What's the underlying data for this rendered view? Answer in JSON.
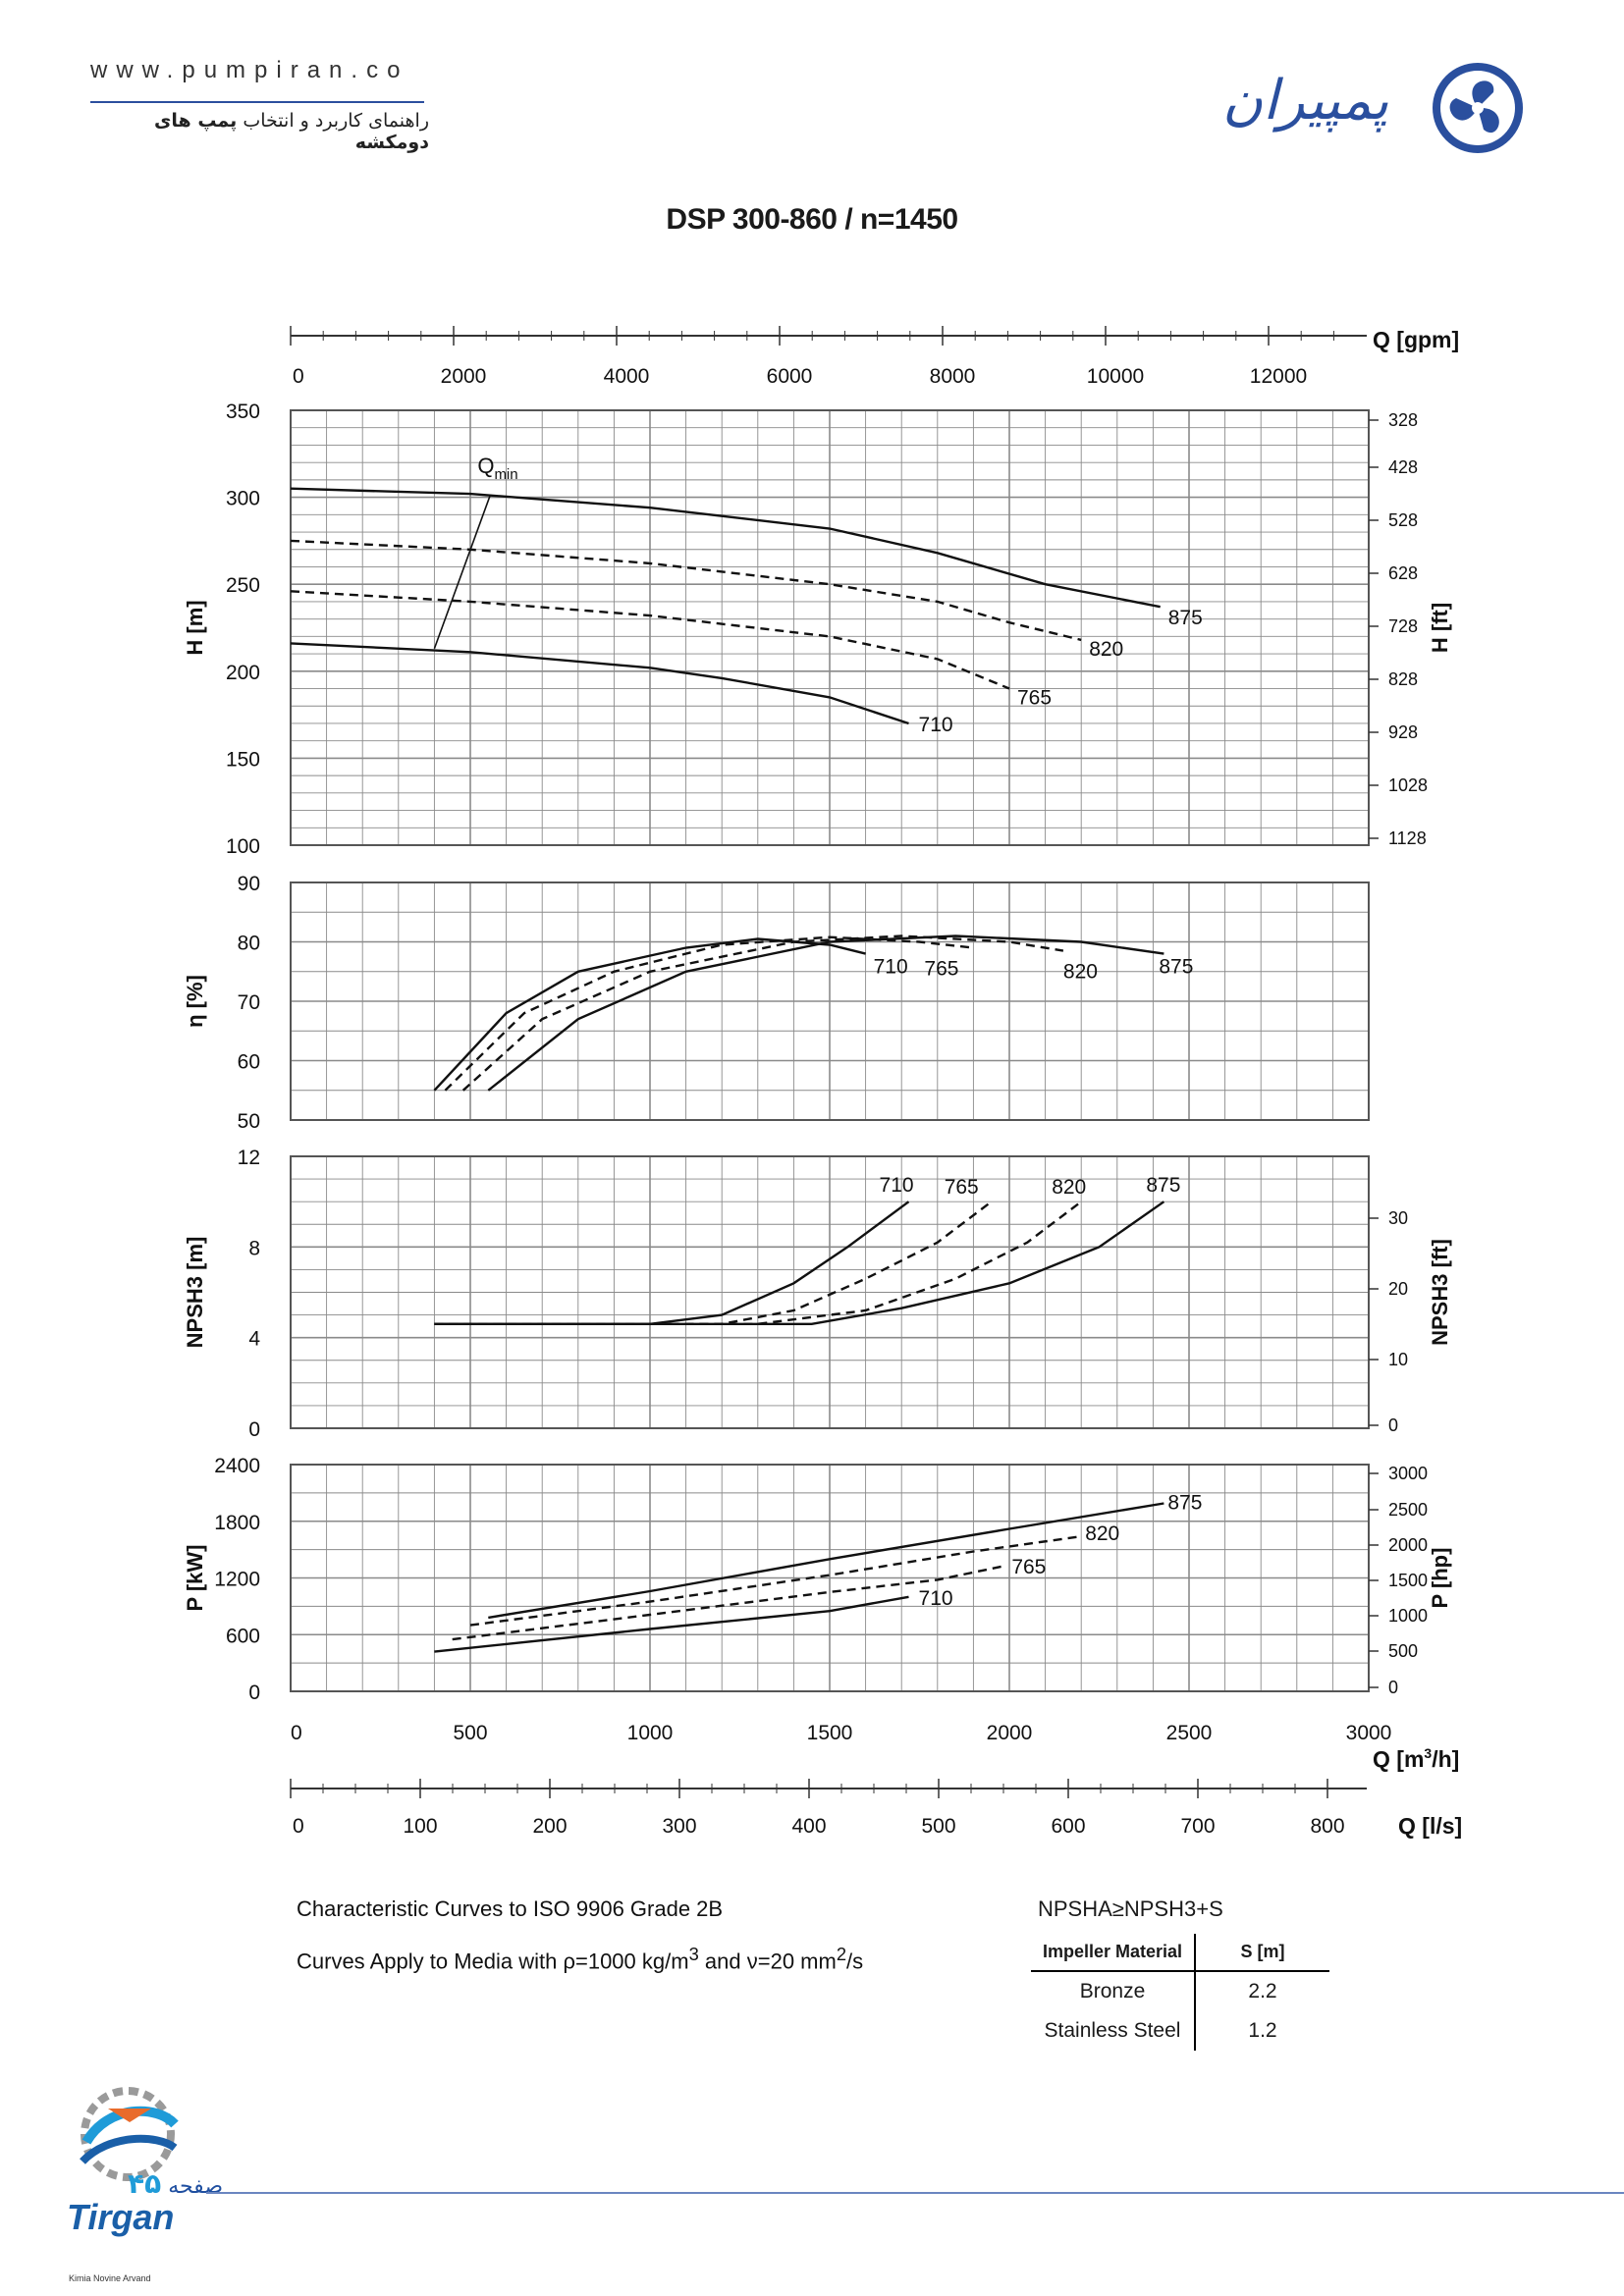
{
  "header": {
    "website": "www.pumpiran.co",
    "subtitle_plain": "راهنمای کاربرد و انتخاب",
    "subtitle_bold": "پمپ های دومکشه",
    "brand_text": "پمپیران",
    "brand_logo_icon": "pumpiran-logo-icon"
  },
  "title": "DSP 300-860 / n=1450",
  "colors": {
    "curve": "#111111",
    "grid": "#8a8a8a",
    "brand": "#2a4f9e"
  },
  "chart_data": [
    {
      "type": "line",
      "panel": "head",
      "ylabel": "H [m]",
      "ylabel_right": "H [ft]",
      "ylim": [
        100,
        350
      ],
      "yticks": [
        "100",
        "150",
        "200",
        "250",
        "300",
        "350"
      ],
      "yticks_right": [
        "328",
        "428",
        "528",
        "628",
        "728",
        "828",
        "928",
        "1028",
        "1128"
      ],
      "grid": true,
      "annotation": {
        "label": "Q",
        "subscript": "min"
      },
      "series": [
        {
          "name": "875",
          "style": "solid",
          "points": [
            [
              0,
              305
            ],
            [
              500,
              302
            ],
            [
              1000,
              294
            ],
            [
              1500,
              282
            ],
            [
              1800,
              268
            ],
            [
              2100,
              250
            ],
            [
              2420,
              237
            ]
          ]
        },
        {
          "name": "820",
          "style": "dashed",
          "points": [
            [
              0,
              275
            ],
            [
              500,
              270
            ],
            [
              1000,
              262
            ],
            [
              1500,
              250
            ],
            [
              1800,
              240
            ],
            [
              2000,
              228
            ],
            [
              2200,
              218
            ]
          ]
        },
        {
          "name": "765",
          "style": "dashed",
          "points": [
            [
              0,
              246
            ],
            [
              500,
              240
            ],
            [
              1000,
              232
            ],
            [
              1500,
              220
            ],
            [
              1800,
              207
            ],
            [
              2000,
              190
            ]
          ]
        },
        {
          "name": "710",
          "style": "solid",
          "points": [
            [
              0,
              216
            ],
            [
              500,
              211
            ],
            [
              1000,
              202
            ],
            [
              1200,
              196
            ],
            [
              1500,
              185
            ],
            [
              1720,
              170
            ]
          ]
        }
      ]
    },
    {
      "type": "line",
      "panel": "efficiency",
      "ylabel": "η [%]",
      "ylim": [
        50,
        90
      ],
      "yticks": [
        "50",
        "60",
        "70",
        "80",
        "90"
      ],
      "grid": true,
      "series": [
        {
          "name": "710",
          "style": "solid",
          "points": [
            [
              400,
              55
            ],
            [
              600,
              68
            ],
            [
              800,
              75
            ],
            [
              1100,
              79
            ],
            [
              1300,
              80.5
            ],
            [
              1500,
              79.5
            ],
            [
              1600,
              78
            ]
          ]
        },
        {
          "name": "765",
          "style": "dashed",
          "points": [
            [
              430,
              55
            ],
            [
              650,
              68
            ],
            [
              900,
              75
            ],
            [
              1200,
              79.5
            ],
            [
              1500,
              80.8
            ],
            [
              1750,
              80
            ],
            [
              1900,
              79
            ]
          ]
        },
        {
          "name": "820",
          "style": "dashed",
          "points": [
            [
              480,
              55
            ],
            [
              700,
              67
            ],
            [
              1000,
              75
            ],
            [
              1400,
              80
            ],
            [
              1700,
              81
            ],
            [
              2000,
              80
            ],
            [
              2150,
              78.5
            ]
          ]
        },
        {
          "name": "875",
          "style": "solid",
          "points": [
            [
              550,
              55
            ],
            [
              800,
              67
            ],
            [
              1100,
              75
            ],
            [
              1500,
              80
            ],
            [
              1850,
              81
            ],
            [
              2200,
              80
            ],
            [
              2430,
              78
            ]
          ]
        }
      ]
    },
    {
      "type": "line",
      "panel": "npsh",
      "ylabel": "NPSH3 [m]",
      "ylabel_right": "NPSH3 [ft]",
      "ylim": [
        0,
        12
      ],
      "yticks": [
        "0",
        "4",
        "8",
        "12"
      ],
      "yticks_right": [
        "0",
        "10",
        "20",
        "30"
      ],
      "grid": true,
      "series": [
        {
          "name": "710",
          "style": "solid",
          "points": [
            [
              400,
              4.6
            ],
            [
              1000,
              4.6
            ],
            [
              1200,
              5.0
            ],
            [
              1400,
              6.4
            ],
            [
              1550,
              8.0
            ],
            [
              1720,
              10
            ]
          ]
        },
        {
          "name": "765",
          "style": "dashed",
          "points": [
            [
              400,
              4.6
            ],
            [
              1200,
              4.6
            ],
            [
              1400,
              5.2
            ],
            [
              1600,
              6.6
            ],
            [
              1800,
              8.2
            ],
            [
              1950,
              10
            ]
          ]
        },
        {
          "name": "820",
          "style": "dashed",
          "points": [
            [
              400,
              4.6
            ],
            [
              1300,
              4.6
            ],
            [
              1600,
              5.2
            ],
            [
              1850,
              6.6
            ],
            [
              2050,
              8.2
            ],
            [
              2200,
              10
            ]
          ]
        },
        {
          "name": "875",
          "style": "solid",
          "points": [
            [
              400,
              4.6
            ],
            [
              1450,
              4.6
            ],
            [
              1700,
              5.3
            ],
            [
              2000,
              6.4
            ],
            [
              2250,
              8.0
            ],
            [
              2430,
              10
            ]
          ]
        }
      ]
    },
    {
      "type": "line",
      "panel": "power",
      "ylabel": "P [kW]",
      "ylabel_right": "P [hp]",
      "ylim": [
        0,
        2400
      ],
      "yticks": [
        "0",
        "600",
        "1200",
        "1800",
        "2400"
      ],
      "yticks_right": [
        "0",
        "500",
        "1000",
        "1500",
        "2000",
        "2500",
        "3000"
      ],
      "grid": true,
      "series": [
        {
          "name": "875",
          "style": "solid",
          "points": [
            [
              550,
              780
            ],
            [
              1000,
              1060
            ],
            [
              1500,
              1400
            ],
            [
              2000,
              1720
            ],
            [
              2430,
              1990
            ]
          ]
        },
        {
          "name": "820",
          "style": "dashed",
          "points": [
            [
              500,
              700
            ],
            [
              1000,
              950
            ],
            [
              1500,
              1230
            ],
            [
              1900,
              1480
            ],
            [
              2200,
              1640
            ]
          ]
        },
        {
          "name": "765",
          "style": "dashed",
          "points": [
            [
              450,
              550
            ],
            [
              1000,
              810
            ],
            [
              1500,
              1050
            ],
            [
              1800,
              1180
            ],
            [
              1990,
              1330
            ]
          ]
        },
        {
          "name": "710",
          "style": "solid",
          "points": [
            [
              400,
              420
            ],
            [
              1000,
              660
            ],
            [
              1500,
              850
            ],
            [
              1720,
              1000
            ]
          ]
        }
      ]
    }
  ],
  "axes": {
    "q_m3h": {
      "label": "Q [m³/h]",
      "ticks": [
        "0",
        "500",
        "1000",
        "1500",
        "2000",
        "2500",
        "3000"
      ]
    },
    "q_gpm": {
      "label": "Q [gpm]",
      "ticks": [
        "0",
        "2000",
        "4000",
        "6000",
        "8000",
        "10000",
        "12000"
      ]
    },
    "q_ls": {
      "label": "Q [l/s]",
      "ticks": [
        "0",
        "100",
        "200",
        "300",
        "400",
        "500",
        "600",
        "700",
        "800"
      ]
    }
  },
  "notes": {
    "line1": "Characteristic Curves to ISO 9906 Grade 2B",
    "line2_a": "Curves Apply to Media with",
    "line2_rho": "ρ=1000 kg/m",
    "line2_b": "and",
    "line2_nu": "ν=20 mm",
    "line2_end": "/s"
  },
  "npsh_table": {
    "condition": "NPSHA≥NPSH3+S",
    "header_material": "Impeller Material",
    "header_s": "S [m]",
    "rows": [
      {
        "material": "Bronze",
        "s": "2.2"
      },
      {
        "material": "Stainless Steel",
        "s": "1.2"
      }
    ]
  },
  "footer": {
    "page_word": "صفحه",
    "page_number": "۴۵",
    "company": "Tirgan",
    "company_sub": "Kimia Novine Arvand"
  }
}
